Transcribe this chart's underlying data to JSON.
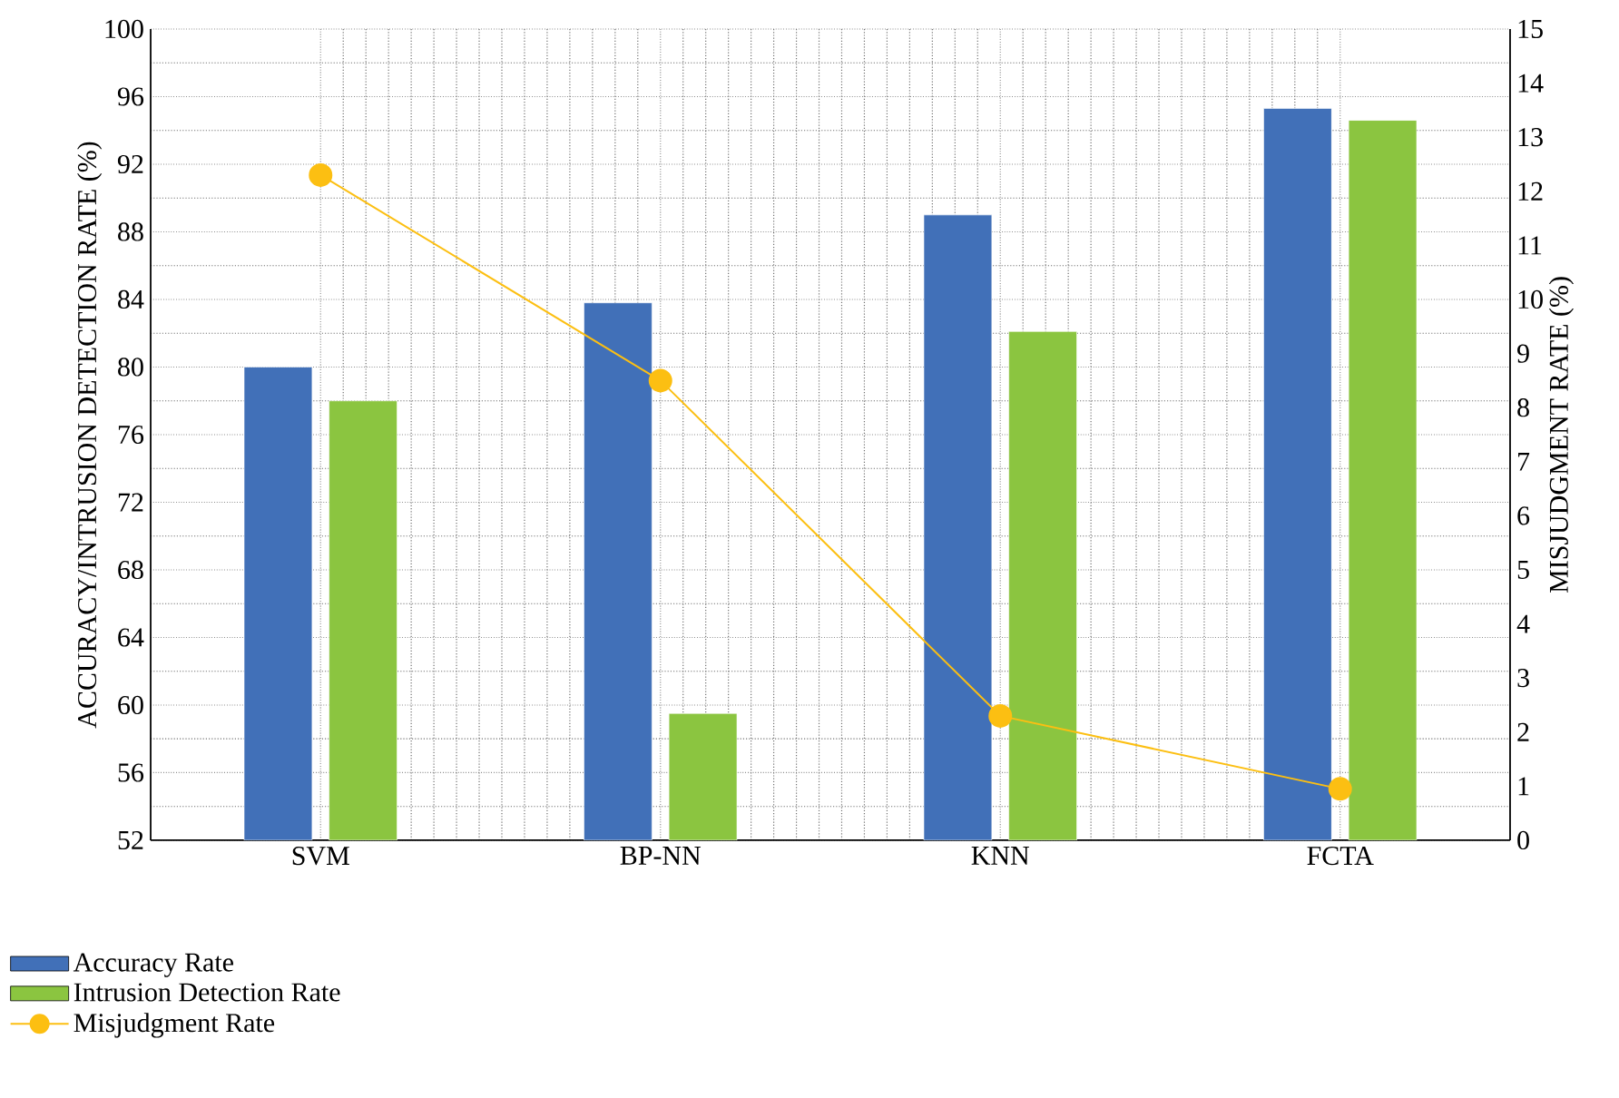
{
  "chart_data": {
    "type": "bar",
    "ylabel": "ACCURACY/INTRUSION DETECTION RATE (%)",
    "y2label": "MISJUDGMENT RATE (%)",
    "categories": [
      "SVM",
      "BP-NN",
      "KNN",
      "FCTA"
    ],
    "series": [
      {
        "name": "Accuracy Rate",
        "color": "#4170b8",
        "values": [
          80,
          83.8,
          89,
          95.3
        ]
      },
      {
        "name": "Intrusion Detection Rate",
        "color": "#8bc540",
        "values": [
          78,
          59.5,
          82.1,
          94.6
        ]
      },
      {
        "name": "Misjudgment Rate",
        "color": "#fcbf12",
        "type": "line",
        "axis": "y2",
        "marker": "circle",
        "values": [
          12.3,
          8.5,
          2.3,
          0.95
        ]
      }
    ],
    "ylim": [
      52,
      100
    ],
    "yticks": [
      52,
      56,
      60,
      64,
      68,
      72,
      76,
      80,
      84,
      88,
      92,
      96,
      100
    ],
    "y2lim": [
      0,
      15
    ],
    "y2ticks": [
      0,
      1,
      2,
      3,
      4,
      5,
      6,
      7,
      8,
      9,
      10,
      11,
      12,
      13,
      14,
      15
    ],
    "grid": true,
    "legend": "bottom left"
  }
}
